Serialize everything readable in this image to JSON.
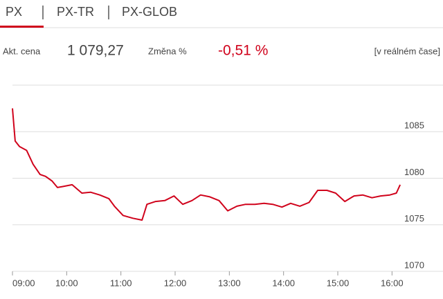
{
  "tabs": [
    "PX",
    "PX-TR",
    "PX-GLOB"
  ],
  "info": {
    "price_label": "Akt. cena",
    "price": "1 079,27",
    "change_label": "Změna %",
    "change": "-0,51 %",
    "mode": "[v reálném čase]"
  },
  "chart_data": {
    "type": "line",
    "x": [
      9,
      9.05,
      9.13,
      9.26,
      9.38,
      9.51,
      9.61,
      9.73,
      9.83,
      9.92,
      10.1,
      10.28,
      10.44,
      10.61,
      10.78,
      10.88,
      11.04,
      11.22,
      11.39,
      11.48,
      11.64,
      11.81,
      11.98,
      12.14,
      12.31,
      12.47,
      12.64,
      12.81,
      12.97,
      13.14,
      13.3,
      13.47,
      13.64,
      13.8,
      13.97,
      14.13,
      14.3,
      14.47,
      14.63,
      14.8,
      14.96,
      15.13,
      15.3,
      15.46,
      15.63,
      15.79,
      15.96,
      16.08,
      16.15
    ],
    "values": [
      1087.5,
      1084.0,
      1083.4,
      1083.0,
      1081.5,
      1080.4,
      1080.2,
      1079.7,
      1079.0,
      1079.1,
      1079.3,
      1078.4,
      1078.5,
      1078.2,
      1077.8,
      1077.0,
      1076.0,
      1075.7,
      1075.5,
      1077.2,
      1077.5,
      1077.6,
      1078.1,
      1077.2,
      1077.6,
      1078.2,
      1078.0,
      1077.6,
      1076.5,
      1077.0,
      1077.2,
      1077.2,
      1077.3,
      1077.2,
      1076.9,
      1077.3,
      1077.0,
      1077.4,
      1078.7,
      1078.7,
      1078.4,
      1077.5,
      1078.1,
      1078.2,
      1077.9,
      1078.1,
      1078.2,
      1078.4,
      1079.3
    ],
    "color": "#d0021b",
    "xlim": [
      9,
      16.2
    ],
    "xticks": [
      {
        "value": 9,
        "label": "09:00"
      },
      {
        "value": 10,
        "label": "10:00"
      },
      {
        "value": 11,
        "label": "11:00"
      },
      {
        "value": 12,
        "label": "12:00"
      },
      {
        "value": 13,
        "label": "13:00"
      },
      {
        "value": 14,
        "label": "14:00"
      },
      {
        "value": 15,
        "label": "15:00"
      },
      {
        "value": 16,
        "label": "16:00"
      }
    ],
    "ylim": [
      1070,
      1090
    ],
    "yticks": [
      1070,
      1075,
      1080,
      1085
    ],
    "grid": true
  }
}
